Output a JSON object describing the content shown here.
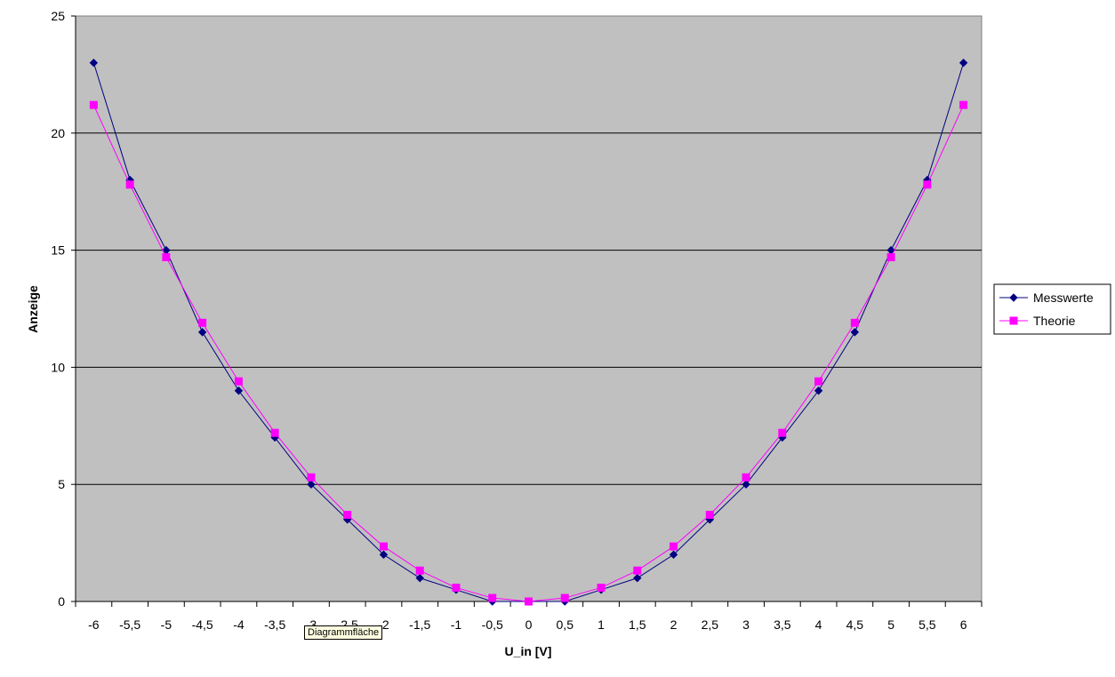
{
  "chart_data": {
    "type": "line",
    "title": "",
    "xlabel": "U_in [V]",
    "ylabel": "Anzeige",
    "categories": [
      "-6",
      "-5,5",
      "-5",
      "-4,5",
      "-4",
      "-3,5",
      "-3",
      "-2,5",
      "-2",
      "-1,5",
      "-1",
      "-0,5",
      "0",
      "0,5",
      "1",
      "1,5",
      "2",
      "2,5",
      "3",
      "3,5",
      "4",
      "4,5",
      "5",
      "5,5",
      "6"
    ],
    "ylim": [
      0,
      25
    ],
    "yticks": [
      "0",
      "5",
      "10",
      "15",
      "20",
      "25"
    ],
    "grid": "horizontal",
    "legend_position": "right",
    "plot_background": "#c0c0c0",
    "series": [
      {
        "name": "Messwerte",
        "color": "#000080",
        "marker": "diamond",
        "values": [
          23,
          18,
          15,
          11.5,
          9,
          7,
          5,
          3.5,
          2,
          1,
          0.5,
          0,
          0,
          0,
          0.5,
          1,
          2,
          3.5,
          5,
          7,
          9,
          11.5,
          15,
          18,
          23
        ]
      },
      {
        "name": "Theorie",
        "color": "#ff00ff",
        "marker": "square",
        "values": [
          21.2,
          17.8,
          14.7,
          11.9,
          9.4,
          7.2,
          5.3,
          3.7,
          2.35,
          1.32,
          0.59,
          0.15,
          0,
          0.15,
          0.59,
          1.32,
          2.35,
          3.7,
          5.3,
          7.2,
          9.4,
          11.9,
          14.7,
          17.8,
          21.2
        ]
      }
    ]
  },
  "tooltip": {
    "text": "Diagrammfläche"
  }
}
